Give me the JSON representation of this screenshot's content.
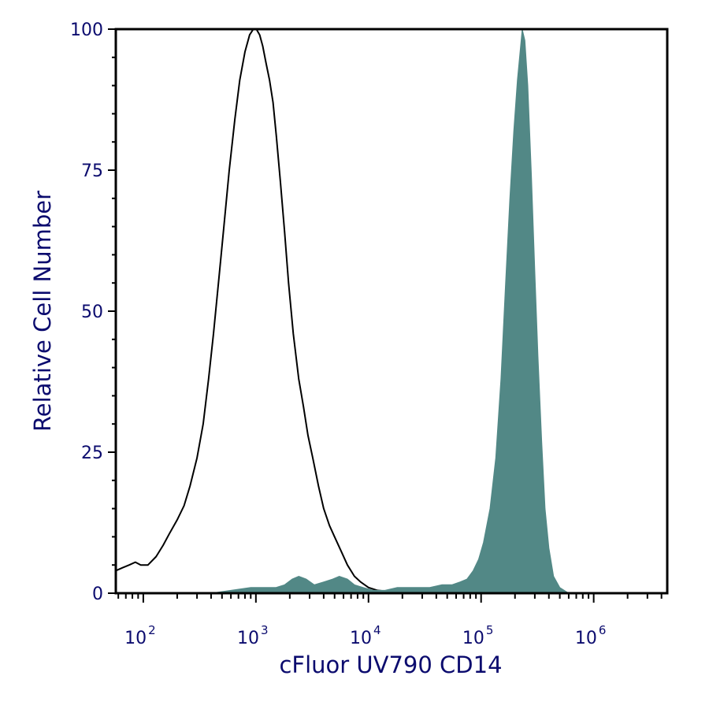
{
  "chart_data": {
    "type": "area",
    "xlabel": "cFluor UV790 CD14",
    "ylabel": "Relative Cell Number",
    "x_scale": "log",
    "xlim": [
      57,
      4500000
    ],
    "ylim": [
      0,
      100
    ],
    "y_ticks": [
      0,
      25,
      50,
      75,
      100
    ],
    "y_tick_labels": [
      "0",
      "25",
      "50",
      "75",
      "100"
    ],
    "x_ticks": [
      100,
      1000,
      10000,
      100000,
      1000000
    ],
    "x_tick_labels": [
      {
        "base": "10",
        "exp": "2"
      },
      {
        "base": "10",
        "exp": "3"
      },
      {
        "base": "10",
        "exp": "4"
      },
      {
        "base": "10",
        "exp": "5"
      },
      {
        "base": "10",
        "exp": "6"
      }
    ],
    "grid": false,
    "legend": "none",
    "series": [
      {
        "style": "outline",
        "color": "#000000",
        "points": [
          [
            57,
            4
          ],
          [
            65,
            4.5
          ],
          [
            75,
            5
          ],
          [
            85,
            5.5
          ],
          [
            95,
            5
          ],
          [
            110,
            5
          ],
          [
            130,
            6.5
          ],
          [
            150,
            8.5
          ],
          [
            170,
            10.5
          ],
          [
            200,
            13
          ],
          [
            230,
            15.5
          ],
          [
            260,
            19
          ],
          [
            300,
            24
          ],
          [
            340,
            30
          ],
          [
            380,
            38
          ],
          [
            420,
            46
          ],
          [
            470,
            56
          ],
          [
            520,
            65
          ],
          [
            580,
            75
          ],
          [
            650,
            84
          ],
          [
            720,
            91
          ],
          [
            800,
            96
          ],
          [
            880,
            99
          ],
          [
            950,
            100
          ],
          [
            1010,
            100
          ],
          [
            1080,
            99
          ],
          [
            1150,
            97
          ],
          [
            1230,
            94
          ],
          [
            1320,
            91
          ],
          [
            1420,
            87
          ],
          [
            1520,
            81
          ],
          [
            1650,
            73
          ],
          [
            1800,
            64
          ],
          [
            1950,
            55
          ],
          [
            2150,
            46
          ],
          [
            2400,
            38
          ],
          [
            2650,
            33
          ],
          [
            2900,
            28
          ],
          [
            3200,
            24
          ],
          [
            3600,
            19
          ],
          [
            4000,
            15
          ],
          [
            4500,
            12
          ],
          [
            5000,
            10
          ],
          [
            5700,
            7.5
          ],
          [
            6500,
            5
          ],
          [
            7500,
            3
          ],
          [
            8500,
            2
          ],
          [
            10000,
            1
          ],
          [
            12000,
            0.5
          ],
          [
            15000,
            0.3
          ],
          [
            20000,
            0.2
          ],
          [
            30000,
            0.1
          ],
          [
            50000,
            0
          ]
        ]
      },
      {
        "style": "filled",
        "color": "#528886",
        "points": [
          [
            400,
            0
          ],
          [
            600,
            0.5
          ],
          [
            900,
            1
          ],
          [
            1200,
            1
          ],
          [
            1500,
            1
          ],
          [
            1800,
            1.5
          ],
          [
            2100,
            2.5
          ],
          [
            2400,
            3
          ],
          [
            2800,
            2.5
          ],
          [
            3300,
            1.5
          ],
          [
            4000,
            2
          ],
          [
            4800,
            2.5
          ],
          [
            5500,
            3
          ],
          [
            6500,
            2.5
          ],
          [
            7500,
            1.5
          ],
          [
            9000,
            1
          ],
          [
            11000,
            0.5
          ],
          [
            14000,
            0.5
          ],
          [
            18000,
            1
          ],
          [
            25000,
            1
          ],
          [
            35000,
            1
          ],
          [
            45000,
            1.5
          ],
          [
            55000,
            1.5
          ],
          [
            65000,
            2
          ],
          [
            75000,
            2.5
          ],
          [
            85000,
            4
          ],
          [
            95000,
            6
          ],
          [
            105000,
            9
          ],
          [
            120000,
            15
          ],
          [
            135000,
            24
          ],
          [
            150000,
            38
          ],
          [
            165000,
            55
          ],
          [
            180000,
            70
          ],
          [
            195000,
            82
          ],
          [
            210000,
            91
          ],
          [
            222000,
            96
          ],
          [
            232000,
            100
          ],
          [
            245000,
            98
          ],
          [
            260000,
            90
          ],
          [
            280000,
            74
          ],
          [
            300000,
            57
          ],
          [
            320000,
            42
          ],
          [
            345000,
            27
          ],
          [
            370000,
            15
          ],
          [
            400000,
            8
          ],
          [
            440000,
            3
          ],
          [
            500000,
            1
          ],
          [
            600000,
            0
          ]
        ]
      }
    ]
  }
}
